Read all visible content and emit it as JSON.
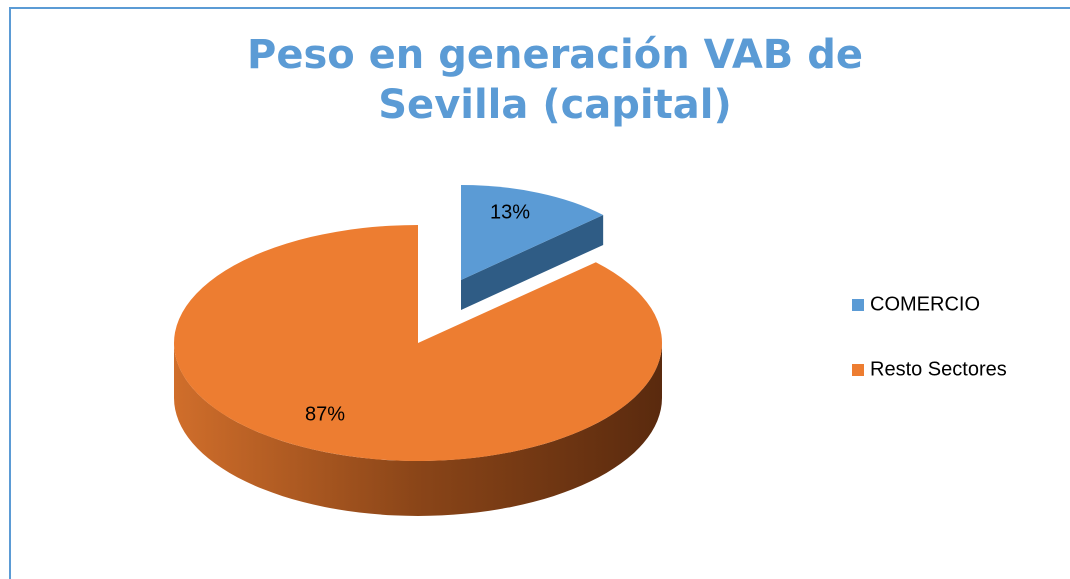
{
  "chart_data": {
    "type": "pie",
    "title": "Peso en generación VAB de Sevilla (capital)",
    "categories": [
      "COMERCIO",
      "Resto Sectores"
    ],
    "values": [
      13,
      87
    ],
    "value_labels": [
      "13%",
      "87%"
    ],
    "colors": [
      "#5b9bd5",
      "#ed7d31"
    ],
    "legend": "right"
  }
}
